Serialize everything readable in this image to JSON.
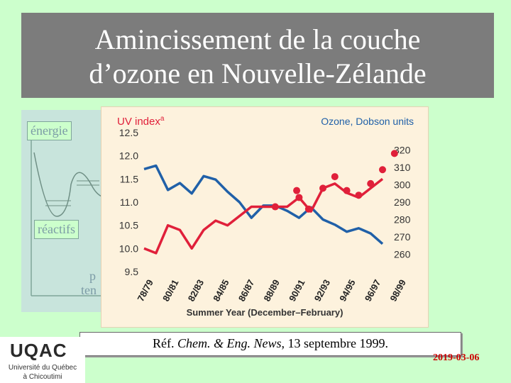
{
  "slide": {
    "title_line1": "Amincissement de la couche",
    "title_line2": "d’ozone en Nouvelle-Zélande",
    "reference": {
      "prefix": "Réf. ",
      "journal": "Chem. & Eng. News",
      "rest": ", 13 septembre 1999."
    },
    "date": "2019-03-06",
    "background_labels": {
      "energie": "énergie",
      "reactifs": "réactifs",
      "partial1": "p",
      "partial2": "ten"
    },
    "logo": {
      "name": "UQAC",
      "line1": "Université du Québec",
      "line2": "à Chicoutimi"
    },
    "colors": {
      "title_bg": "#7c7c7c",
      "slide_bg": "#ccffcc",
      "date": "#cc0000"
    }
  },
  "chart_data": {
    "type": "line",
    "left_axis_label": "UV index",
    "left_axis_sup": "a",
    "right_axis_label": "Ozone, Dobson units",
    "xlabel": "Summer Year (December–February)",
    "categories": [
      "78/79",
      "80/81",
      "82/83",
      "84/85",
      "86/87",
      "88/89",
      "90/91",
      "92/93",
      "94/95",
      "96/97",
      "98/99"
    ],
    "x_range": [
      1978,
      1998
    ],
    "left_ylim": [
      9.5,
      12.5
    ],
    "left_ticks": [
      "12.5",
      "12.0",
      "11.5",
      "11.0",
      "10.5",
      "10.0",
      "9.5"
    ],
    "left_tick_values": [
      12.5,
      12.0,
      11.5,
      11.0,
      10.5,
      10.0,
      9.5
    ],
    "right_ylim": [
      250,
      330
    ],
    "right_ticks": [
      "320",
      "310",
      "300",
      "290",
      "280",
      "270",
      "260"
    ],
    "right_tick_values": [
      320,
      310,
      300,
      290,
      280,
      270,
      260
    ],
    "series": [
      {
        "axis": "right",
        "color": "#2060a8",
        "x": [
          1978,
          1979,
          1980,
          1981,
          1982,
          1983,
          1984,
          1985,
          1986,
          1987,
          1988,
          1989,
          1990,
          1991,
          1992,
          1993,
          1994,
          1995,
          1996,
          1997,
          1998
        ],
        "values": [
          309,
          311,
          297,
          301,
          295,
          305,
          303,
          296,
          290,
          281,
          288,
          288,
          285,
          281,
          287,
          280,
          277,
          273,
          275,
          272,
          266
        ]
      },
      {
        "axis": "left",
        "color": "#e0203a",
        "x": [
          1978,
          1979,
          1980,
          1981,
          1982,
          1983,
          1984,
          1985,
          1986,
          1987,
          1988,
          1989,
          1990,
          1991,
          1992,
          1993,
          1994,
          1995,
          1996,
          1997,
          1998
        ],
        "values": [
          10.0,
          9.9,
          10.5,
          10.4,
          10.0,
          10.4,
          10.6,
          10.5,
          10.7,
          10.9,
          10.9,
          10.9,
          10.9,
          11.1,
          10.8,
          11.3,
          11.4,
          11.2,
          11.1,
          11.3,
          11.5
        ]
      }
    ],
    "markers": {
      "color": "#e0203a",
      "x": [
        1989,
        1990.8,
        1991,
        1991.8,
        1993,
        1994,
        1995,
        1996,
        1997,
        1998,
        1999
      ],
      "values": [
        10.9,
        11.25,
        11.1,
        10.85,
        11.3,
        11.55,
        11.25,
        11.15,
        11.4,
        11.7,
        12.05
      ]
    }
  }
}
